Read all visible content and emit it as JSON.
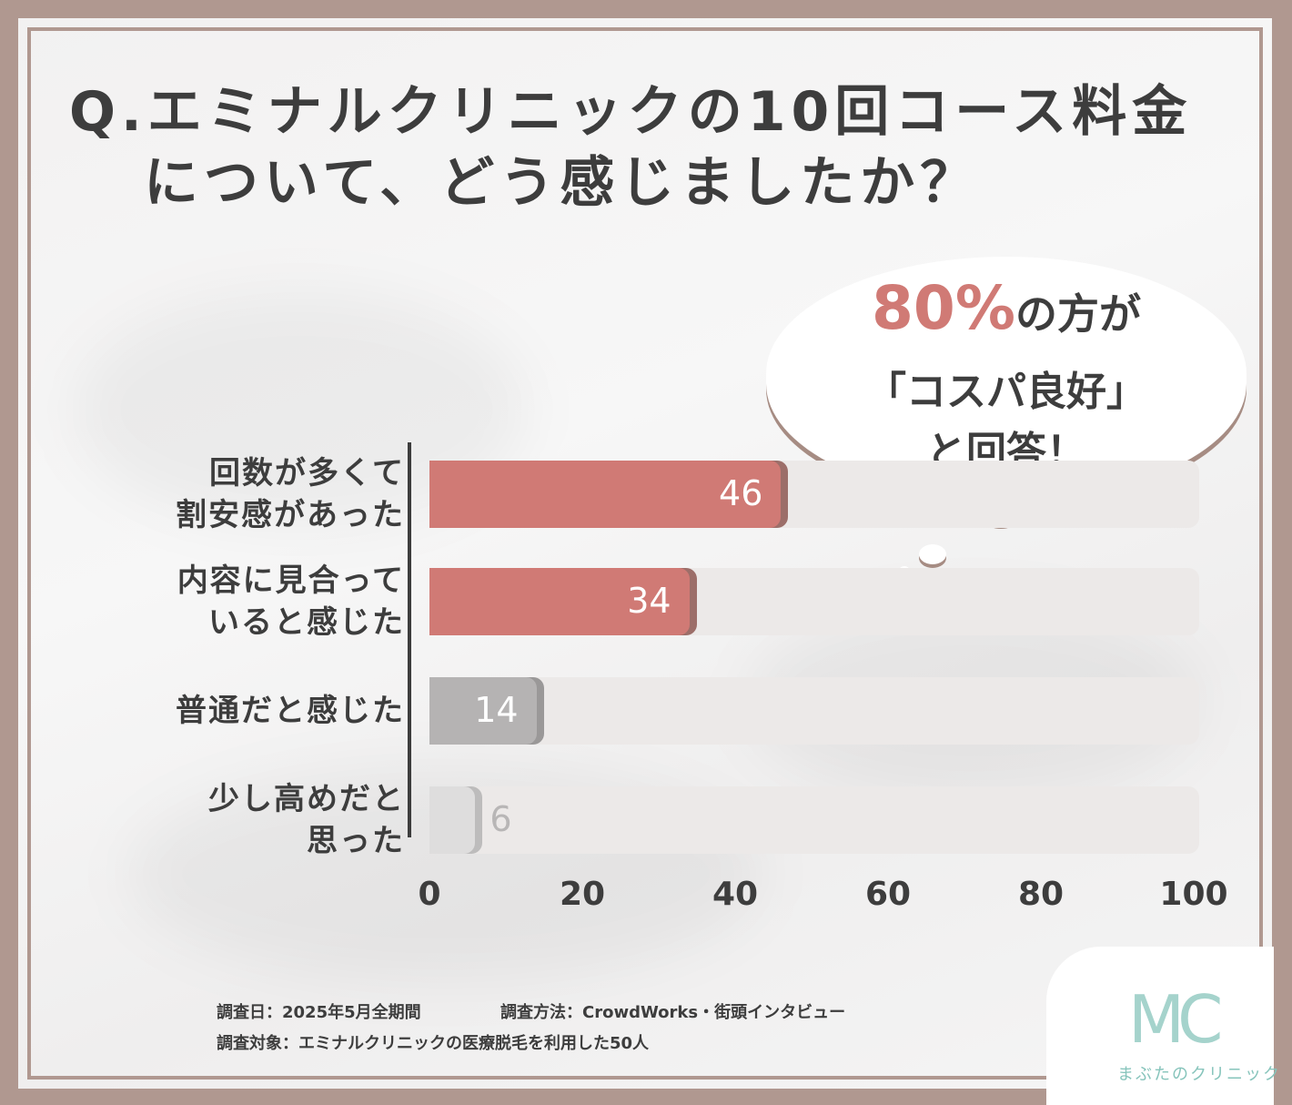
{
  "title": {
    "line1": "Q.エミナルクリニックの10回コース料金",
    "line2": "について、どう感じましたか？"
  },
  "callout": {
    "percent": "80%",
    "line1_rest": "の方が",
    "line2": "「コスパ良好」",
    "line3": "と回答！"
  },
  "chart_data": {
    "type": "bar",
    "orientation": "horizontal",
    "categories": [
      [
        "回数が多くて",
        "割安感があった"
      ],
      [
        "内容に見合って",
        "いると感じた"
      ],
      [
        "普通だと感じた"
      ],
      [
        "少し高めだと",
        "思った"
      ]
    ],
    "values": [
      46,
      34,
      14,
      6
    ],
    "value_labels": [
      "46",
      "34",
      "14",
      "6"
    ],
    "xlim": [
      0,
      100
    ],
    "xticks": [
      "0",
      "20",
      "40",
      "60",
      "80",
      "100"
    ],
    "colors": [
      "#d07a75",
      "#d07a75",
      "#b5b3b3",
      "#dedddd"
    ],
    "shadow_colors": [
      "#9c6e69",
      "#9c6e69",
      "#9a9898",
      "#bdbcbc"
    ]
  },
  "footer": {
    "date": "調査日：2025年5月全期間",
    "method": "調査方法：CrowdWorks・街頭インタビュー",
    "target": "調査対象：エミナルクリニックの医療脱毛を利用した50人"
  },
  "logo": {
    "mark": "MC",
    "name": "まぶたのクリニック"
  }
}
